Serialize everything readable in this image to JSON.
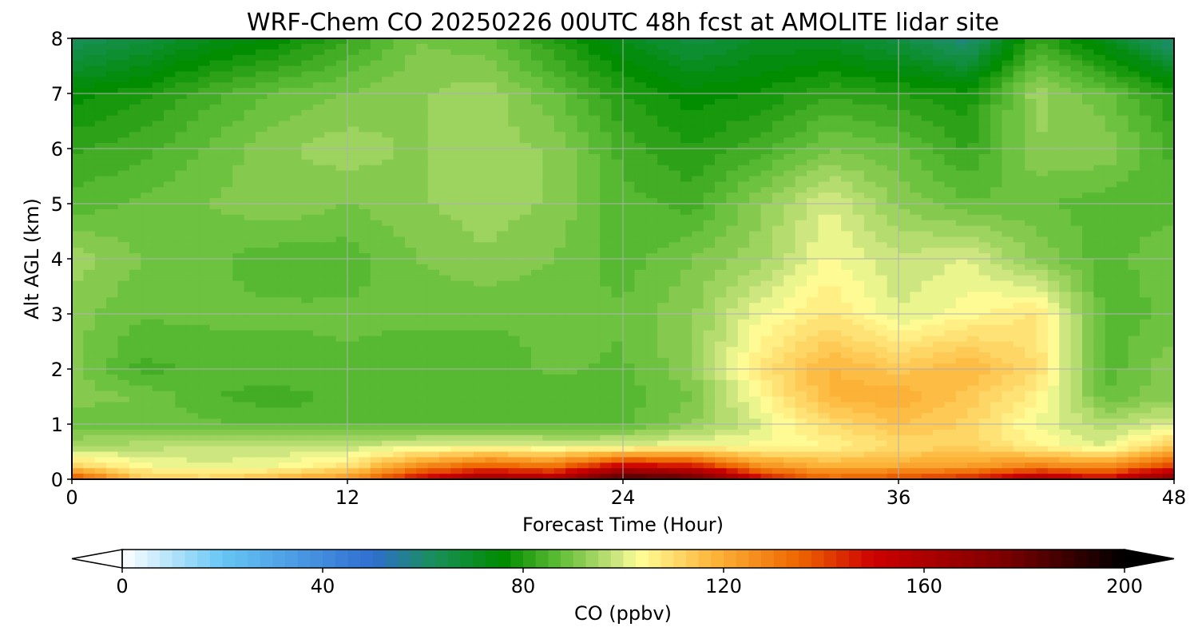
{
  "chart_data": {
    "type": "heatmap",
    "title": "WRF-Chem CO  20250226 00UTC 48h fcst at AMOLITE lidar site",
    "xlabel": "Forecast Time (Hour)",
    "ylabel": "Alt AGL (km)",
    "xlim": [
      0,
      48
    ],
    "ylim": [
      0,
      8
    ],
    "x_ticks": [
      "0",
      "12",
      "24",
      "36",
      "48"
    ],
    "y_ticks": [
      "0",
      "1",
      "2",
      "3",
      "4",
      "5",
      "6",
      "7",
      "8"
    ],
    "grid": true,
    "colorbar": {
      "label": "CO  (ppbv)",
      "range": [
        0,
        200
      ],
      "ticks": [
        "0",
        "40",
        "80",
        "120",
        "160",
        "200"
      ],
      "extend": "both",
      "stops": [
        {
          "v": 0,
          "c": "#ffffff"
        },
        {
          "v": 20,
          "c": "#66c6f4"
        },
        {
          "v": 50,
          "c": "#2f6ed0"
        },
        {
          "v": 62,
          "c": "#1a8f5c"
        },
        {
          "v": 76,
          "c": "#008c00"
        },
        {
          "v": 88,
          "c": "#66bf3a"
        },
        {
          "v": 98,
          "c": "#c5e27a"
        },
        {
          "v": 103,
          "c": "#ffff99"
        },
        {
          "v": 118,
          "c": "#fdb43a"
        },
        {
          "v": 135,
          "c": "#ee6600"
        },
        {
          "v": 150,
          "c": "#cc0000"
        },
        {
          "v": 175,
          "c": "#800000"
        },
        {
          "v": 200,
          "c": "#000000"
        }
      ]
    },
    "grid_values": {
      "x": [
        0,
        3,
        6,
        9,
        12,
        15,
        18,
        21,
        24,
        27,
        30,
        33,
        36,
        39,
        42,
        45,
        48
      ],
      "y": [
        0,
        0.25,
        0.6,
        1,
        1.5,
        2,
        3,
        4,
        5,
        6,
        7,
        8
      ],
      "z": [
        [
          140,
          115,
          112,
          118,
          125,
          150,
          165,
          160,
          190,
          185,
          150,
          135,
          140,
          145,
          160,
          150,
          175
        ],
        [
          112,
          103,
          100,
          102,
          108,
          125,
          135,
          130,
          150,
          145,
          125,
          118,
          120,
          122,
          128,
          125,
          140
        ],
        [
          95,
          96,
          98,
          98,
          98,
          100,
          102,
          100,
          100,
          103,
          103,
          105,
          110,
          112,
          105,
          100,
          115
        ],
        [
          88,
          89,
          88,
          86,
          86,
          87,
          86,
          86,
          87,
          92,
          100,
          110,
          115,
          112,
          102,
          96,
          100
        ],
        [
          91,
          90,
          85,
          84,
          86,
          86,
          86,
          86,
          86,
          90,
          104,
          118,
          120,
          114,
          106,
          88,
          92
        ],
        [
          91,
          84,
          86,
          86,
          87,
          86,
          86,
          88,
          87,
          92,
          108,
          118,
          114,
          118,
          110,
          86,
          92
        ],
        [
          91,
          88,
          88,
          88,
          88,
          88,
          88,
          88,
          88,
          92,
          102,
          108,
          100,
          104,
          108,
          86,
          88
        ],
        [
          94,
          90,
          88,
          86,
          86,
          90,
          92,
          90,
          86,
          90,
          94,
          103,
          98,
          100,
          92,
          86,
          90
        ],
        [
          86,
          88,
          90,
          92,
          90,
          92,
          94,
          92,
          86,
          84,
          92,
          100,
          92,
          88,
          88,
          86,
          86
        ],
        [
          82,
          84,
          88,
          92,
          94,
          92,
          94,
          92,
          84,
          80,
          84,
          90,
          88,
          82,
          92,
          92,
          84
        ],
        [
          76,
          79,
          84,
          88,
          90,
          92,
          94,
          88,
          80,
          76,
          78,
          82,
          80,
          78,
          94,
          88,
          80
        ],
        [
          62,
          66,
          72,
          76,
          82,
          90,
          88,
          80,
          72,
          66,
          70,
          70,
          66,
          58,
          82,
          72,
          58
        ]
      ]
    }
  }
}
